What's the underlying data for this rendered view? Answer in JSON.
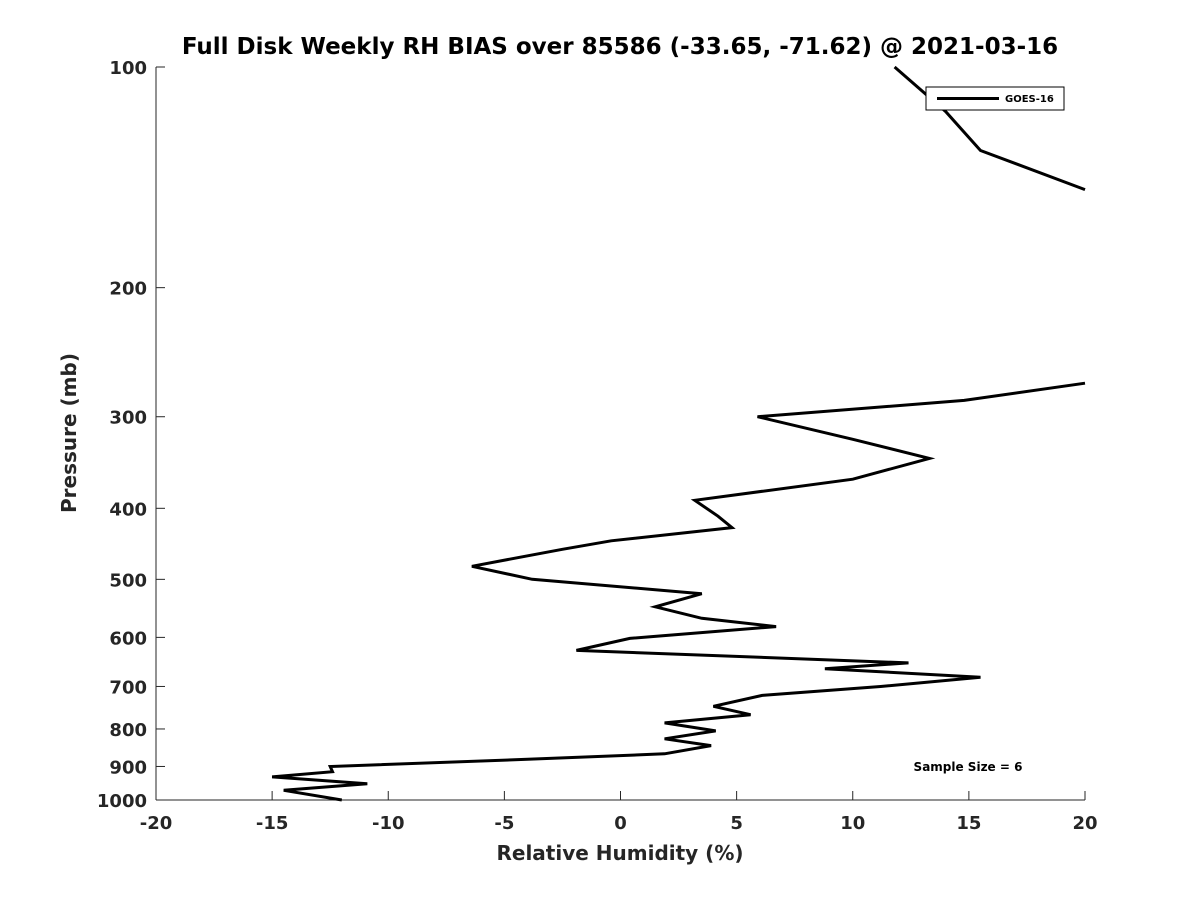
{
  "chart_data": {
    "type": "line",
    "title": "Full Disk Weekly RH BIAS over 85586 (-33.65, -71.62) @ 2021-03-16",
    "xlabel": "Relative Humidity (%)",
    "ylabel": "Pressure (mb)",
    "xlim": [
      -20,
      20
    ],
    "ylim": [
      100,
      1000
    ],
    "y_scale": "log",
    "y_reversed": true,
    "x_ticks": [
      "-20",
      "-15",
      "-10",
      "-5",
      "0",
      "5",
      "10",
      "15",
      "20"
    ],
    "y_ticks": [
      "100",
      "200",
      "300",
      "400",
      "500",
      "600",
      "700",
      "800",
      "900",
      "1000"
    ],
    "grid": false,
    "legend": {
      "position": "top-right",
      "entries": [
        "GOES-16"
      ]
    },
    "annotation": "Sample Size = 6",
    "line_color": "#000000",
    "series": [
      {
        "name": "GOES-16",
        "segments": [
          [
            {
              "x": 11.8,
              "y": 100
            },
            {
              "x": 14.0,
              "y": 115
            },
            {
              "x": 15.5,
              "y": 130
            },
            {
              "x": 20.0,
              "y": 147
            }
          ],
          [
            {
              "x": 20.0,
              "y": 270
            },
            {
              "x": 14.8,
              "y": 285
            },
            {
              "x": 5.9,
              "y": 300
            },
            {
              "x": 10.0,
              "y": 322
            },
            {
              "x": 13.3,
              "y": 342
            },
            {
              "x": 10.0,
              "y": 365
            },
            {
              "x": 3.2,
              "y": 390
            },
            {
              "x": 4.2,
              "y": 410
            },
            {
              "x": 4.8,
              "y": 425
            },
            {
              "x": -0.4,
              "y": 443
            },
            {
              "x": -2.5,
              "y": 455
            },
            {
              "x": -6.4,
              "y": 480
            },
            {
              "x": -3.8,
              "y": 500
            },
            {
              "x": 3.5,
              "y": 523
            },
            {
              "x": 1.5,
              "y": 545
            },
            {
              "x": 3.5,
              "y": 565
            },
            {
              "x": 6.7,
              "y": 580
            },
            {
              "x": 0.4,
              "y": 602
            },
            {
              "x": -1.9,
              "y": 625
            },
            {
              "x": 12.4,
              "y": 650
            },
            {
              "x": 8.8,
              "y": 662
            },
            {
              "x": 15.5,
              "y": 680
            },
            {
              "x": 11.2,
              "y": 700
            },
            {
              "x": 6.1,
              "y": 720
            },
            {
              "x": 4.0,
              "y": 745
            },
            {
              "x": 5.6,
              "y": 765
            },
            {
              "x": 1.9,
              "y": 785
            },
            {
              "x": 4.1,
              "y": 805
            },
            {
              "x": 1.9,
              "y": 825
            },
            {
              "x": 3.9,
              "y": 843
            },
            {
              "x": 1.9,
              "y": 865
            },
            {
              "x": -4.0,
              "y": 880
            },
            {
              "x": -12.5,
              "y": 900
            },
            {
              "x": -12.4,
              "y": 915
            },
            {
              "x": -15.0,
              "y": 930
            },
            {
              "x": -10.9,
              "y": 950
            },
            {
              "x": -14.5,
              "y": 970
            },
            {
              "x": -12.0,
              "y": 1000
            }
          ]
        ]
      }
    ]
  }
}
